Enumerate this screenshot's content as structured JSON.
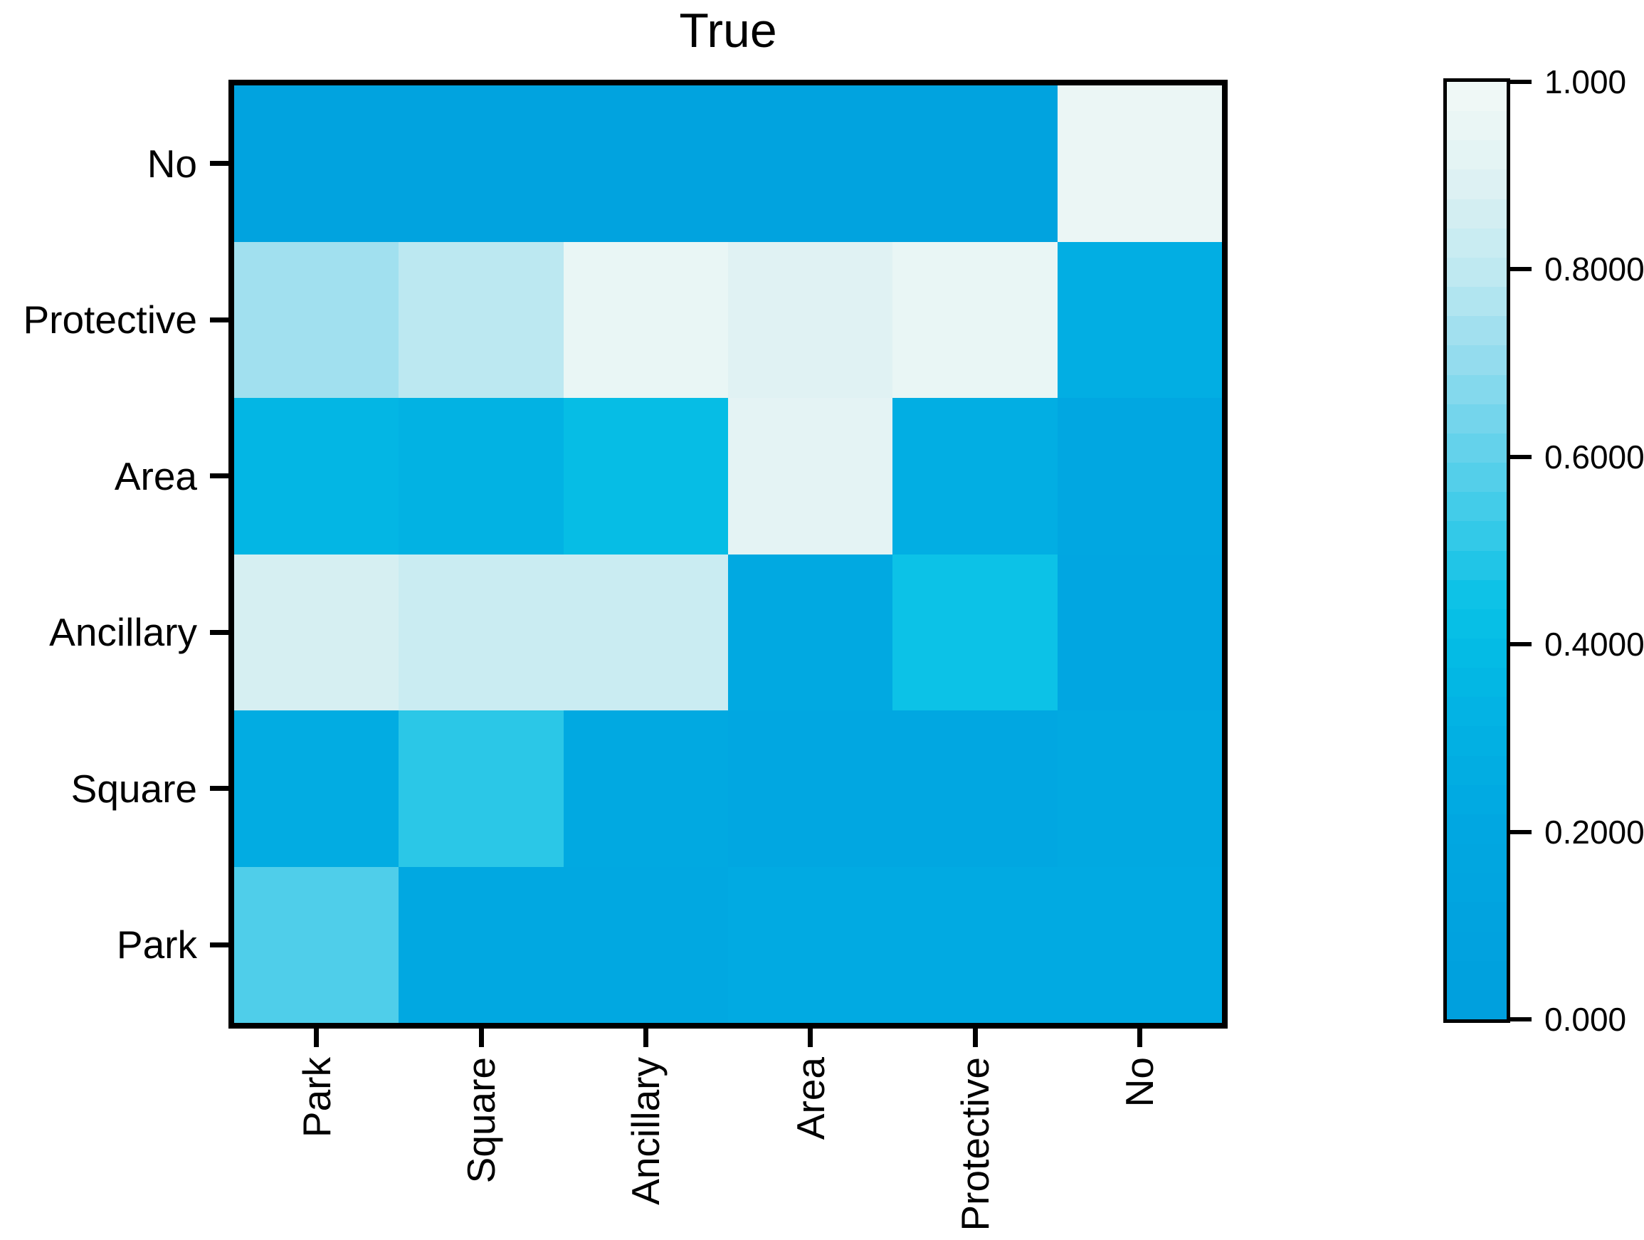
{
  "chart_data": {
    "type": "heatmap",
    "title": "True",
    "x_categories": [
      "Park",
      "Square",
      "Ancillary",
      "Area",
      "Protective",
      "No"
    ],
    "y_categories_top_to_bottom": [
      "No",
      "Protective",
      "Area",
      "Ancillary",
      "Square",
      "Park"
    ],
    "matrix_rows_top_to_bottom": [
      [
        0.1,
        0.1,
        0.1,
        0.1,
        0.1,
        0.96
      ],
      [
        0.73,
        0.79,
        0.95,
        0.9,
        0.95,
        0.28
      ],
      [
        0.35,
        0.32,
        0.41,
        0.92,
        0.28,
        0.2
      ],
      [
        0.87,
        0.83,
        0.83,
        0.22,
        0.45,
        0.18
      ],
      [
        0.26,
        0.5,
        0.22,
        0.2,
        0.2,
        0.22
      ],
      [
        0.57,
        0.21,
        0.21,
        0.23,
        0.23,
        0.23
      ]
    ],
    "value_range": [
      0.0,
      1.0
    ],
    "grid_lines": false,
    "legend_position": "right-colorbar",
    "colorbar": {
      "levels": 32,
      "tick_labels_top_to_bottom": [
        "1.000",
        "0.8000",
        "0.6000",
        "0.4000",
        "0.2000",
        "0.000"
      ],
      "tick_values_top_to_bottom": [
        1.0,
        0.8,
        0.6,
        0.4,
        0.2,
        0.0
      ]
    },
    "colormap_stops": [
      {
        "value": 0.0,
        "color": "#00a0de"
      },
      {
        "value": 0.1,
        "color": "#01a3df"
      },
      {
        "value": 0.2,
        "color": "#01a7e1"
      },
      {
        "value": 0.3,
        "color": "#02b0e3"
      },
      {
        "value": 0.4,
        "color": "#04bce5"
      },
      {
        "value": 0.45,
        "color": "#0cc2e7"
      },
      {
        "value": 0.5,
        "color": "#2bc7e7"
      },
      {
        "value": 0.6,
        "color": "#5fd1eb"
      },
      {
        "value": 0.7,
        "color": "#93dcee"
      },
      {
        "value": 0.8,
        "color": "#c0e9f1"
      },
      {
        "value": 0.9,
        "color": "#e0f2f3"
      },
      {
        "value": 1.0,
        "color": "#f2f9f6"
      }
    ],
    "axis_color": "#000000",
    "background_color": "#ffffff"
  }
}
